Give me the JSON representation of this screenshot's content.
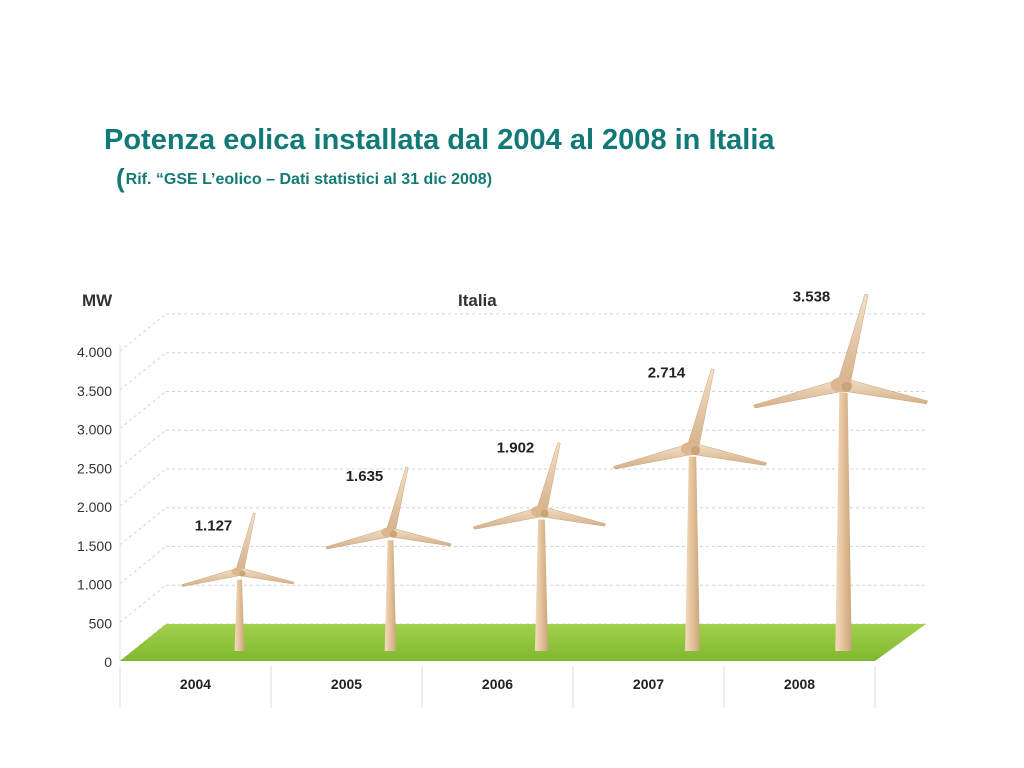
{
  "slide": {
    "title": "Potenza eolica installata dal 2004 al 2008 in Italia",
    "subtitle_open": "(",
    "subtitle": "Rif. “GSE L’eolico – Dati statistici al 31 dic 2008)"
  },
  "chart_data": {
    "type": "bar",
    "title": "Italia",
    "ylabel": "MW",
    "xlabel": "",
    "categories": [
      "2004",
      "2005",
      "2006",
      "2007",
      "2008"
    ],
    "values": [
      1127,
      1635,
      1902,
      2714,
      3538
    ],
    "value_labels": [
      "1.127",
      "1.635",
      "1.902",
      "2.714",
      "3.538"
    ],
    "yticks": [
      0,
      500,
      1000,
      1500,
      2000,
      2500,
      3000,
      3500,
      4000
    ],
    "ytick_labels": [
      "0",
      "500",
      "1.000",
      "1.500",
      "2.000",
      "2.500",
      "3.000",
      "3.500",
      "4.000"
    ],
    "ylim": [
      0,
      4000
    ],
    "grid": true,
    "bar_style": "wind-turbine",
    "floor_color": "#8cc63f",
    "turbine_color": "#e8c9a3"
  }
}
